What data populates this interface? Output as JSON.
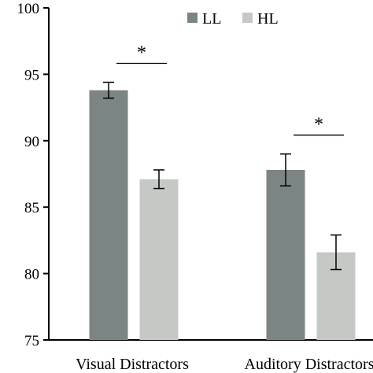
{
  "chart_data": {
    "type": "bar",
    "title": "",
    "xlabel": "",
    "ylabel": "",
    "categories": [
      "Visual Distractors",
      "Auditory Distractors"
    ],
    "series": [
      {
        "name": "LL",
        "color": "#7b8684",
        "values": [
          93.8,
          87.8
        ],
        "error": [
          0.6,
          1.2
        ]
      },
      {
        "name": "HL",
        "color": "#c5c9c6",
        "values": [
          87.1,
          81.6
        ],
        "error": [
          0.7,
          1.3
        ]
      }
    ],
    "ylim": [
      75,
      100
    ],
    "yticks": [
      "75",
      "80",
      "85",
      "90",
      "95",
      "100"
    ],
    "grid": false,
    "legend": "top",
    "significance": [
      {
        "category_index": 0,
        "label": "*"
      },
      {
        "category_index": 1,
        "label": "*"
      }
    ]
  }
}
